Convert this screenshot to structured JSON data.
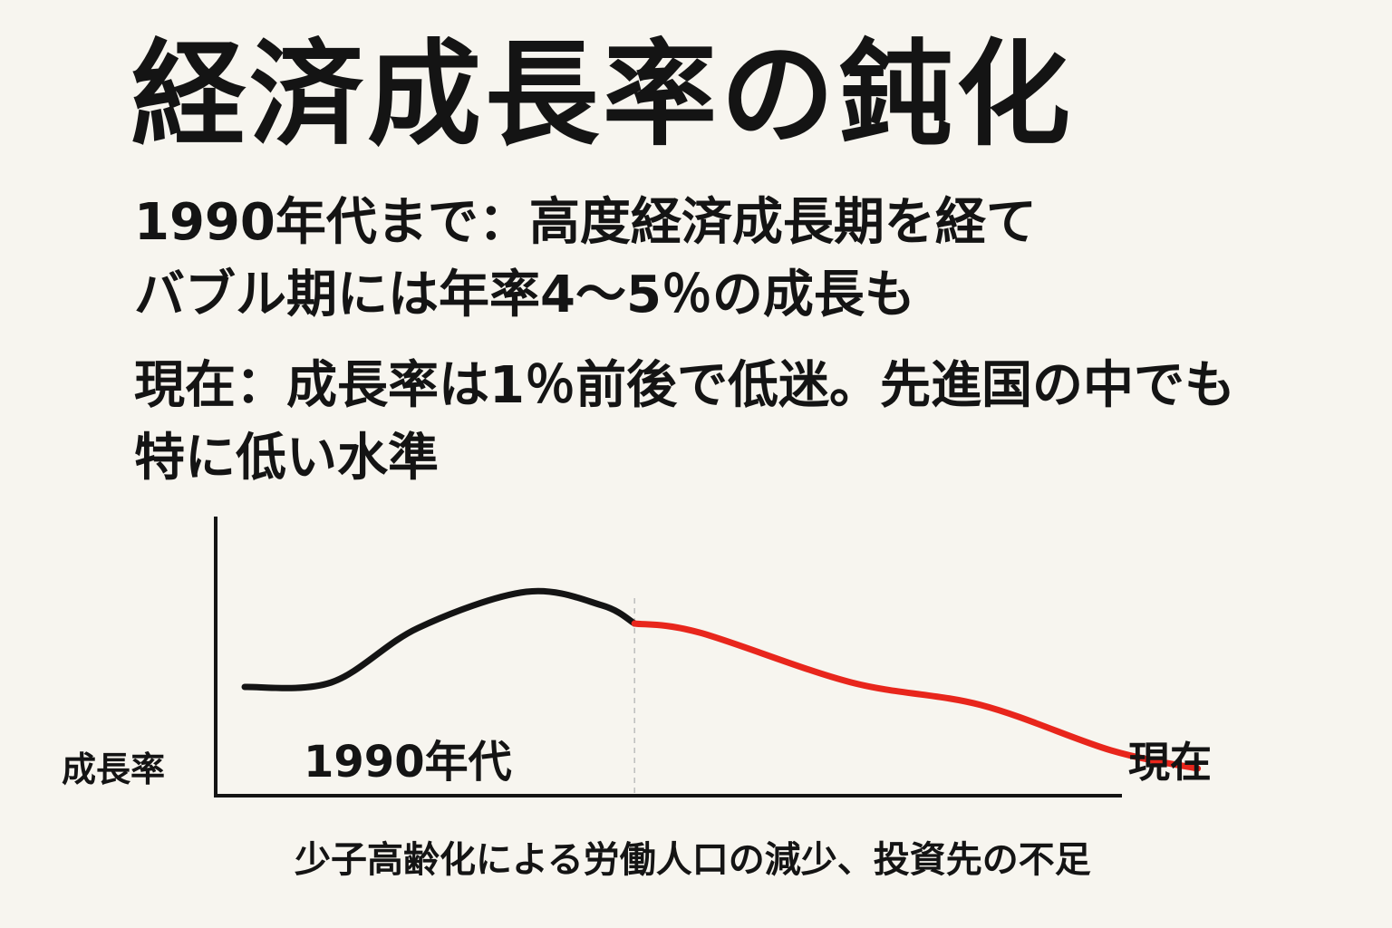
{
  "title": "経済成長率の鈍化",
  "paragraphs": [
    [
      "1990年代まで：高度経済成長期を経て",
      "バブル期には年率4～5％の成長も"
    ],
    [
      "現在：成長率は1％前後で低迷。先進国の中でも",
      "特に低い水準"
    ]
  ],
  "chart_data": {
    "type": "line",
    "ylabel": "成長率",
    "xlabel": "少子高齢化による労働人口の減少、投資先の不足",
    "x_labels": [
      "1990年代",
      "現在"
    ],
    "series": [
      {
        "color": "#141414",
        "points": [
          [
            0,
            2.4
          ],
          [
            0.08,
            2.5
          ],
          [
            0.16,
            3.7
          ],
          [
            0.26,
            4.5
          ],
          [
            0.33,
            4.2
          ],
          [
            0.36,
            3.8
          ]
        ]
      },
      {
        "color": "#e8261c",
        "points": [
          [
            0.36,
            3.8
          ],
          [
            0.42,
            3.6
          ],
          [
            0.56,
            2.5
          ],
          [
            0.68,
            2.0
          ],
          [
            0.8,
            1.0
          ],
          [
            0.88,
            0.6
          ]
        ]
      }
    ],
    "ylim": [
      0,
      6
    ],
    "xlim": [
      0,
      1
    ],
    "grid": false,
    "divider_x": 0.36
  }
}
